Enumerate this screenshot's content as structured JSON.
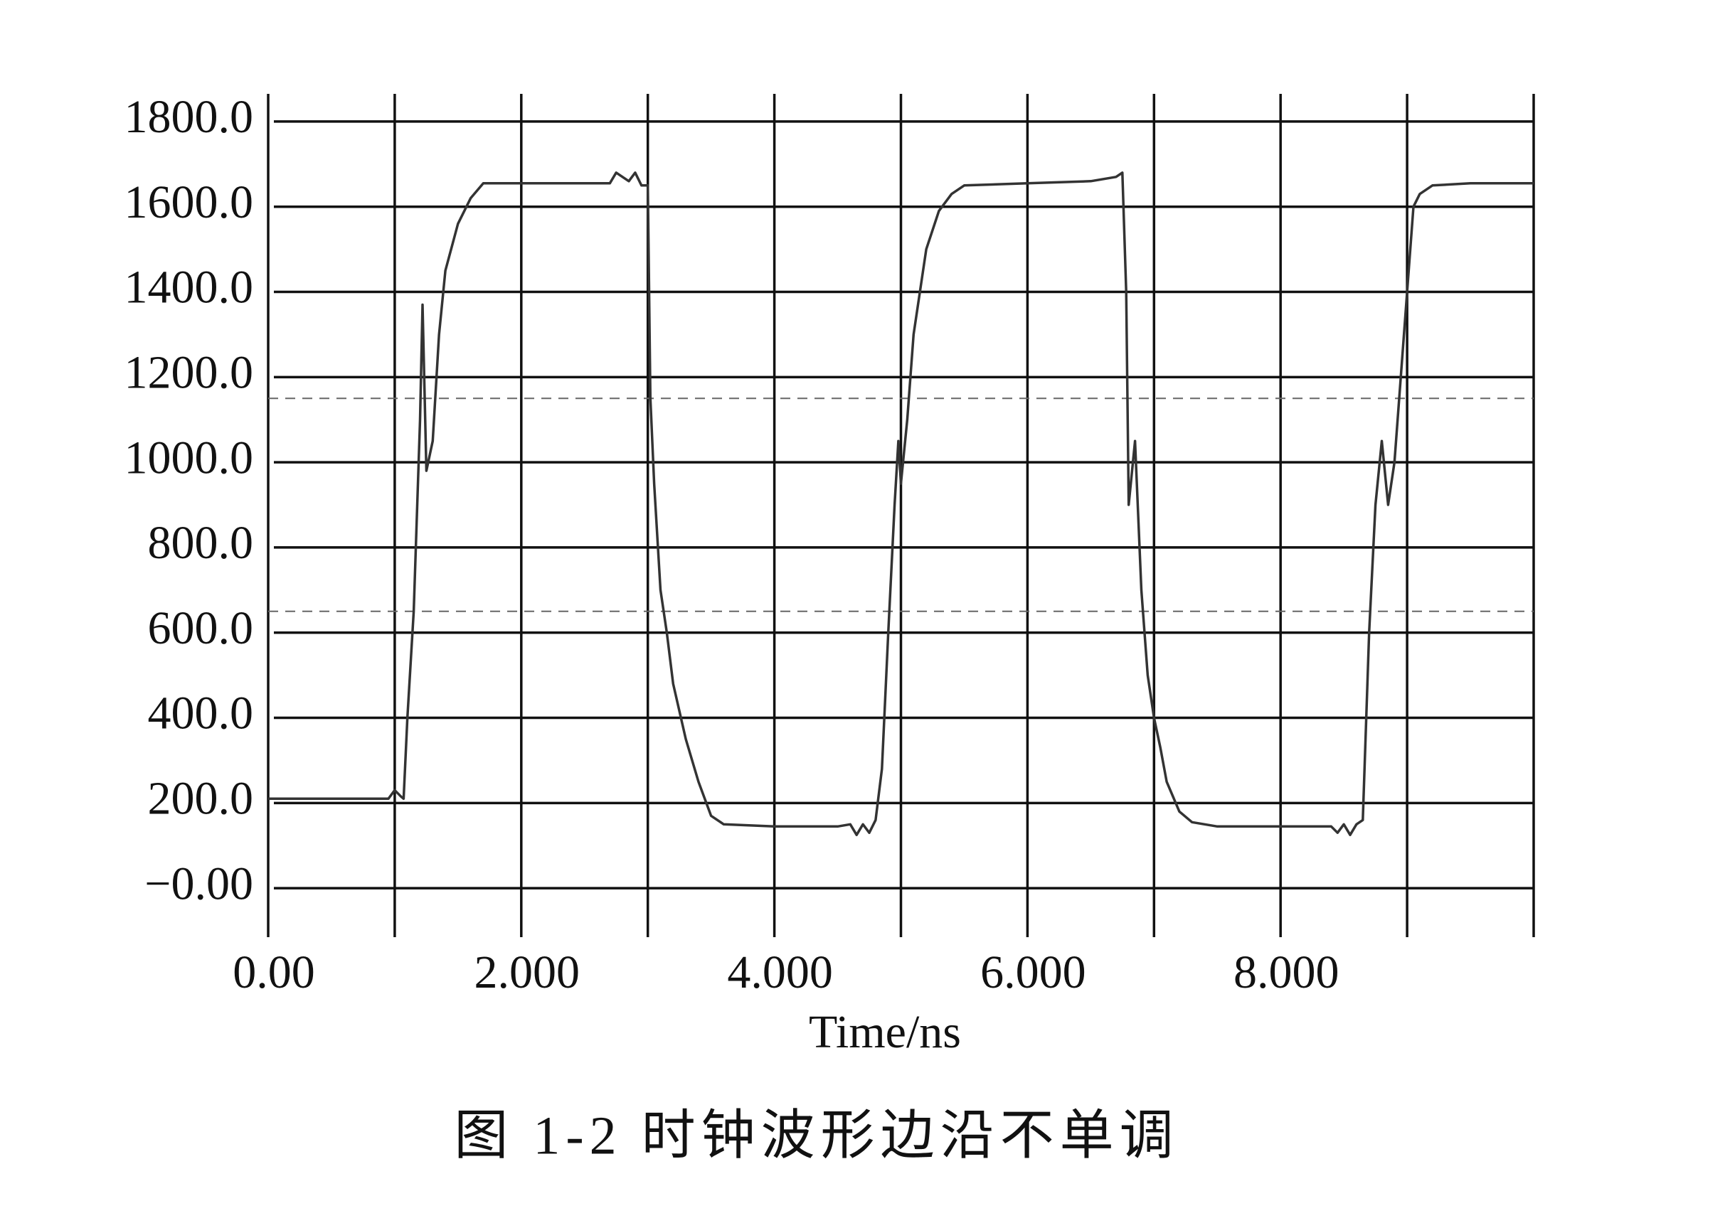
{
  "chart_data": {
    "type": "line",
    "caption": "图 1-2  时钟波形边沿不单调",
    "x_label": "Time/ns",
    "xlim": [
      0,
      10
    ],
    "ylim": [
      -115,
      1865
    ],
    "xticks": [
      {
        "value": 0,
        "label": "0.00"
      },
      {
        "value": 2,
        "label": "2.000"
      },
      {
        "value": 4,
        "label": "4.000"
      },
      {
        "value": 6,
        "label": "6.000"
      },
      {
        "value": 8,
        "label": "8.000"
      }
    ],
    "xgrid": [
      0,
      1,
      2,
      3,
      4,
      5,
      6,
      7,
      8,
      9,
      10
    ],
    "yticks": [
      {
        "value": 0,
        "label": "−0.00"
      },
      {
        "value": 200,
        "label": "200.0"
      },
      {
        "value": 400,
        "label": "400.0"
      },
      {
        "value": 600,
        "label": "600.0"
      },
      {
        "value": 800,
        "label": "800.0"
      },
      {
        "value": 1000,
        "label": "1000.0"
      },
      {
        "value": 1200,
        "label": "1200.0"
      },
      {
        "value": 1400,
        "label": "1400.0"
      },
      {
        "value": 1600,
        "label": "1600.0"
      },
      {
        "value": 1800,
        "label": "1800.0"
      }
    ],
    "grid": true,
    "ref_lines": [
      1150,
      650
    ],
    "color": "#333333",
    "x": [
      0,
      0.95,
      1.0,
      1.05,
      1.07,
      1.1,
      1.15,
      1.2,
      1.22,
      1.25,
      1.3,
      1.35,
      1.4,
      1.5,
      1.6,
      1.7,
      2.0,
      2.7,
      2.75,
      2.85,
      2.9,
      2.95,
      3.0,
      3.02,
      3.05,
      3.1,
      3.15,
      3.2,
      3.3,
      3.4,
      3.5,
      3.6,
      4.0,
      4.5,
      4.6,
      4.65,
      4.7,
      4.75,
      4.8,
      4.85,
      4.9,
      4.95,
      4.98,
      5.0,
      5.05,
      5.1,
      5.2,
      5.3,
      5.4,
      5.5,
      6.0,
      6.5,
      6.7,
      6.75,
      6.78,
      6.8,
      6.85,
      6.9,
      6.95,
      7.0,
      7.05,
      7.1,
      7.2,
      7.3,
      7.5,
      8.0,
      8.4,
      8.45,
      8.5,
      8.55,
      8.6,
      8.65,
      8.7,
      8.75,
      8.8,
      8.85,
      8.9,
      8.95,
      9.0,
      9.05,
      9.1,
      9.2,
      9.5,
      10.0
    ],
    "values": [
      210,
      210,
      230,
      215,
      210,
      400,
      650,
      1100,
      1370,
      980,
      1050,
      1300,
      1450,
      1560,
      1620,
      1655,
      1655,
      1655,
      1680,
      1660,
      1680,
      1650,
      1650,
      1150,
      950,
      700,
      600,
      480,
      350,
      250,
      170,
      150,
      145,
      145,
      150,
      125,
      150,
      130,
      160,
      280,
      600,
      900,
      1050,
      950,
      1100,
      1300,
      1500,
      1590,
      1630,
      1650,
      1655,
      1660,
      1670,
      1680,
      1400,
      900,
      1050,
      700,
      500,
      400,
      330,
      250,
      180,
      155,
      145,
      145,
      145,
      130,
      150,
      125,
      150,
      160,
      600,
      900,
      1050,
      900,
      1000,
      1200,
      1400,
      1600,
      1630,
      1650,
      1655,
      1655
    ]
  }
}
